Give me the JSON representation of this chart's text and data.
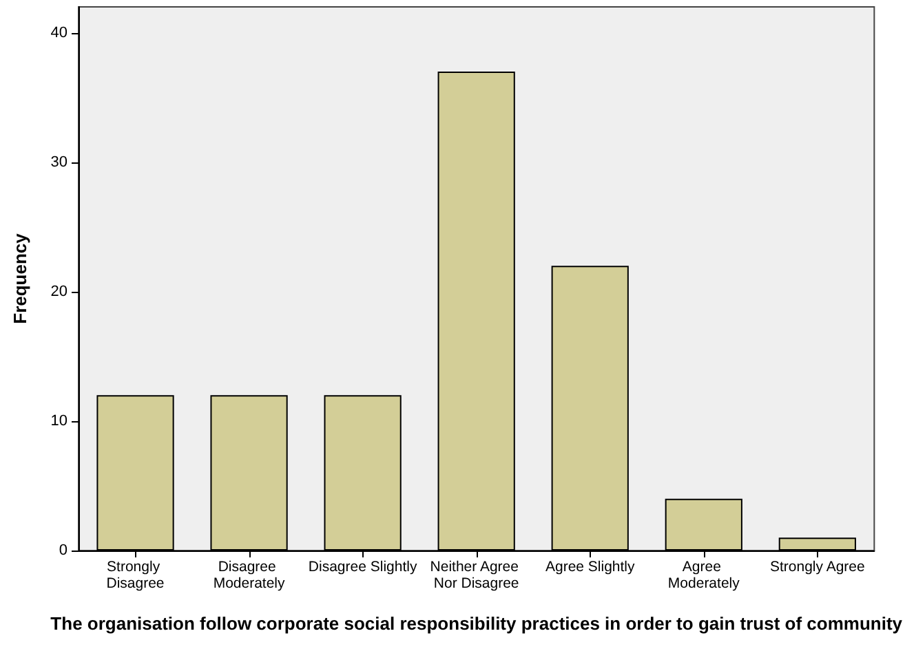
{
  "chart_data": {
    "type": "bar",
    "xlabel": "The organisation follow corporate social responsibility practices in order to gain trust of community",
    "ylabel": "Frequency",
    "categories": [
      "Strongly Disagree",
      "Disagree Moderately",
      "Disagree Slightly",
      "Neither Agree Nor Disagree",
      "Agree Slightly",
      "Agree Moderately",
      "Strongly Agree"
    ],
    "values": [
      12,
      12,
      12,
      37,
      22,
      4,
      1
    ],
    "color": "#d3ce97",
    "ylim": [
      0,
      42
    ],
    "yticks": [
      0,
      10,
      20,
      30,
      40
    ],
    "grid": false
  }
}
